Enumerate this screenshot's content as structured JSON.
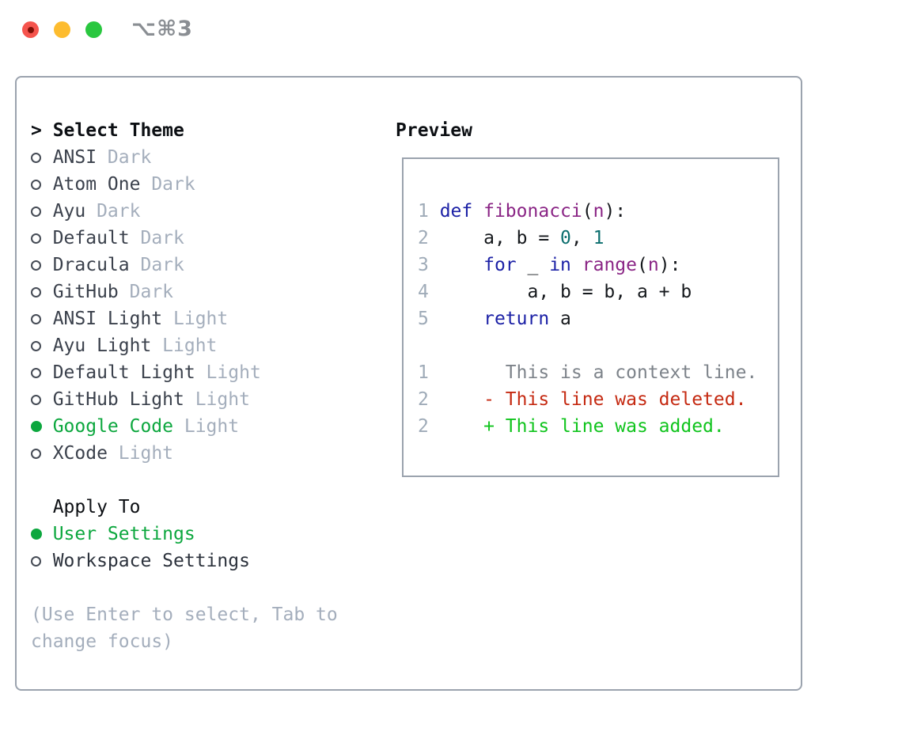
{
  "titlebar": {
    "shortcut_label": "⌥⌘3",
    "buttons": [
      "close",
      "minimize",
      "zoom"
    ]
  },
  "theme_panel": {
    "title_marker": ">",
    "title": "Select Theme",
    "themes": [
      {
        "name": "ANSI",
        "variant": "Dark",
        "selected": false
      },
      {
        "name": "Atom One",
        "variant": "Dark",
        "selected": false
      },
      {
        "name": "Ayu",
        "variant": "Dark",
        "selected": false
      },
      {
        "name": "Default",
        "variant": "Dark",
        "selected": false
      },
      {
        "name": "Dracula",
        "variant": "Dark",
        "selected": false
      },
      {
        "name": "GitHub",
        "variant": "Dark",
        "selected": false
      },
      {
        "name": "ANSI Light",
        "variant": "Light",
        "selected": false
      },
      {
        "name": "Ayu Light",
        "variant": "Light",
        "selected": false
      },
      {
        "name": "Default Light",
        "variant": "Light",
        "selected": false
      },
      {
        "name": "GitHub Light",
        "variant": "Light",
        "selected": false
      },
      {
        "name": "Google Code",
        "variant": "Light",
        "selected": true
      },
      {
        "name": "XCode",
        "variant": "Light",
        "selected": false
      }
    ],
    "apply_to": {
      "title": "Apply To",
      "options": [
        {
          "label": "User Settings",
          "selected": true
        },
        {
          "label": "Workspace Settings",
          "selected": false
        }
      ]
    },
    "hint_lines": [
      "(Use Enter to select, Tab to",
      "change focus)"
    ]
  },
  "preview_panel": {
    "title": "Preview",
    "lines": [
      {
        "n": "1",
        "t": [
          [
            "kw",
            "def"
          ],
          [
            "pl",
            " "
          ],
          [
            "fn",
            "fibonacci"
          ],
          [
            "pl",
            "("
          ],
          [
            "fn",
            "n"
          ],
          [
            "pl",
            "):"
          ]
        ]
      },
      {
        "n": "2",
        "t": [
          [
            "pl",
            "    a, b = "
          ],
          [
            "num",
            "0"
          ],
          [
            "pl",
            ", "
          ],
          [
            "num",
            "1"
          ]
        ]
      },
      {
        "n": "3",
        "t": [
          [
            "pl",
            "    "
          ],
          [
            "kw",
            "for"
          ],
          [
            "pl",
            " _ "
          ],
          [
            "kw",
            "in"
          ],
          [
            "pl",
            " "
          ],
          [
            "fn",
            "range"
          ],
          [
            "pl",
            "("
          ],
          [
            "fn",
            "n"
          ],
          [
            "pl",
            "):"
          ]
        ]
      },
      {
        "n": "4",
        "t": [
          [
            "pl",
            "        a, b = b, a + b"
          ]
        ]
      },
      {
        "n": "5",
        "t": [
          [
            "pl",
            "    "
          ],
          [
            "kw",
            "return"
          ],
          [
            "pl",
            " a"
          ]
        ]
      },
      {
        "n": "",
        "t": []
      },
      {
        "n": "1",
        "t": [
          [
            "ctx",
            "      This is a context line."
          ]
        ]
      },
      {
        "n": "2",
        "t": [
          [
            "pl",
            "    "
          ],
          [
            "del",
            "- This line was deleted."
          ]
        ]
      },
      {
        "n": "2",
        "t": [
          [
            "pl",
            "    "
          ],
          [
            "add",
            "+ This line was added."
          ]
        ]
      }
    ]
  },
  "colors": {
    "accent_green": "#0ca73e",
    "added_green": "#10c41d",
    "deleted_red": "#c52a12",
    "keyword_blue": "#1c21a6",
    "function_purple": "#8a2585",
    "number_teal": "#0b6e6e",
    "context_gray": "#7d838a",
    "line_number": "#9fabb8",
    "muted": "#a4aebc",
    "border": "#9ba3ae",
    "tl_red": "#f5544d",
    "tl_red_dot": "#7f0f06",
    "tl_yellow": "#fdbc2f",
    "tl_green": "#29c73f"
  }
}
